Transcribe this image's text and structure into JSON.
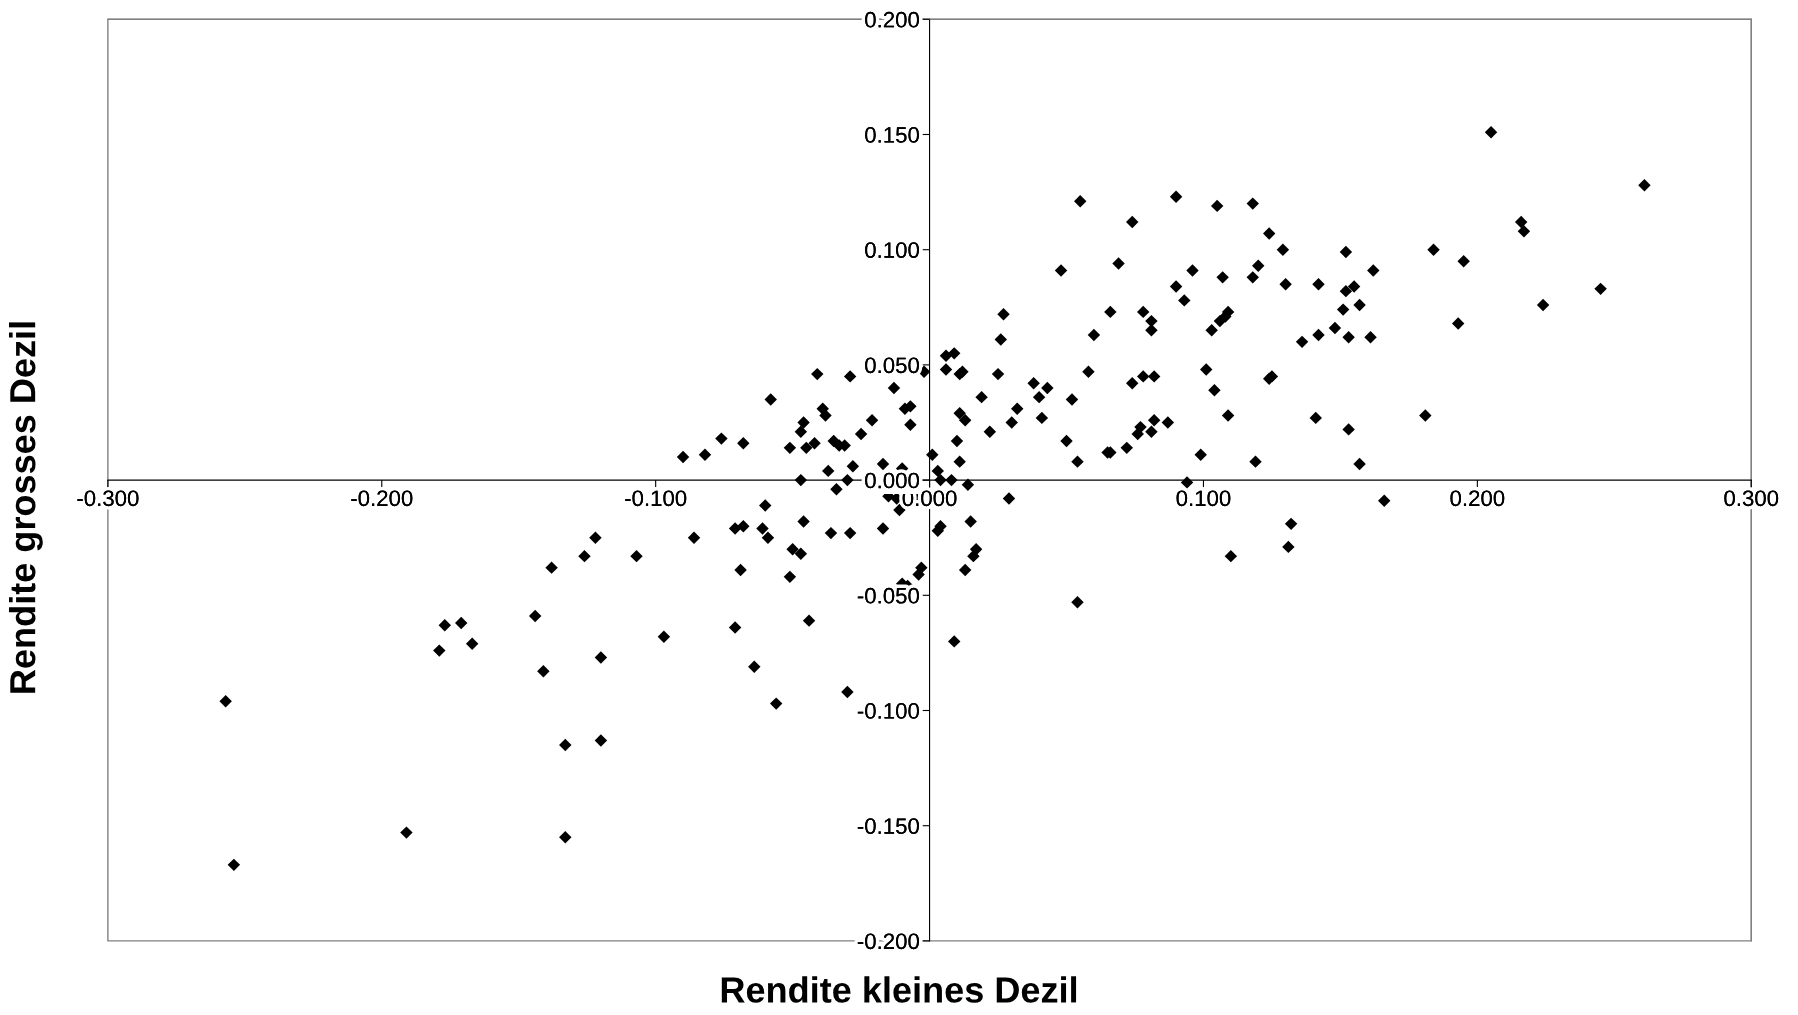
{
  "chart_data": {
    "type": "scatter",
    "xlabel": "Rendite kleines Dezil",
    "ylabel": "Rendite grosses Dezil",
    "xlim": [
      -0.3,
      0.3
    ],
    "ylim": [
      -0.2,
      0.2
    ],
    "xticks": [
      {
        "value": -0.3,
        "label": "-0.300"
      },
      {
        "value": -0.2,
        "label": "-0.200"
      },
      {
        "value": -0.1,
        "label": "-0.100"
      },
      {
        "value": 0.0,
        "label": "0.000"
      },
      {
        "value": 0.1,
        "label": "0.100"
      },
      {
        "value": 0.2,
        "label": "0.200"
      },
      {
        "value": 0.3,
        "label": "0.300"
      }
    ],
    "yticks": [
      {
        "value": -0.2,
        "label": "-0.200"
      },
      {
        "value": -0.15,
        "label": "-0.150"
      },
      {
        "value": -0.1,
        "label": "-0.100"
      },
      {
        "value": -0.05,
        "label": "-0.050"
      },
      {
        "value": 0.0,
        "label": "0.000"
      },
      {
        "value": 0.05,
        "label": "0.050"
      },
      {
        "value": 0.1,
        "label": "0.100"
      },
      {
        "value": 0.15,
        "label": "0.150"
      },
      {
        "value": 0.2,
        "label": "0.200"
      }
    ],
    "marker": "diamond",
    "grid": false,
    "series": [
      {
        "color": "#000000",
        "x": [
          -0.257,
          -0.254,
          -0.191,
          -0.177,
          -0.179,
          -0.171,
          -0.167,
          -0.144,
          -0.141,
          -0.138,
          -0.133,
          -0.133,
          -0.126,
          -0.122,
          -0.12,
          -0.12,
          -0.107,
          -0.097,
          -0.09,
          -0.086,
          -0.082,
          -0.076,
          -0.071,
          -0.069,
          -0.071,
          -0.068,
          -0.068,
          -0.064,
          -0.061,
          -0.06,
          -0.058,
          -0.059,
          -0.056,
          -0.051,
          -0.051,
          -0.05,
          -0.047,
          -0.047,
          -0.046,
          -0.046,
          -0.047,
          -0.045,
          -0.044,
          -0.042,
          -0.041,
          -0.039,
          -0.038,
          -0.037,
          -0.036,
          -0.035,
          -0.034,
          -0.033,
          -0.031,
          -0.03,
          -0.029,
          -0.029,
          -0.03,
          -0.028,
          -0.025,
          -0.021,
          -0.017,
          -0.017,
          -0.015,
          -0.013,
          -0.012,
          -0.011,
          -0.01,
          -0.008,
          -0.009,
          -0.007,
          -0.007,
          -0.01,
          -0.004,
          -0.004,
          -0.003,
          -0.002,
          0.001,
          0.003,
          0.003,
          0.004,
          0.004,
          0.006,
          0.006,
          0.008,
          0.009,
          0.009,
          0.01,
          0.011,
          0.011,
          0.012,
          0.011,
          0.013,
          0.013,
          0.014,
          0.015,
          0.016,
          0.017,
          0.019,
          0.022,
          0.025,
          0.026,
          0.027,
          0.029,
          0.03,
          0.032,
          0.038,
          0.04,
          0.041,
          0.043,
          0.048,
          0.05,
          0.052,
          0.054,
          0.054,
          0.055,
          0.058,
          0.06,
          0.065,
          0.066,
          0.066,
          0.069,
          0.072,
          0.074,
          0.074,
          0.076,
          0.077,
          0.078,
          0.078,
          0.081,
          0.081,
          0.081,
          0.082,
          0.082,
          0.087,
          0.09,
          0.09,
          0.093,
          0.094,
          0.096,
          0.099,
          0.101,
          0.103,
          0.104,
          0.105,
          0.106,
          0.107,
          0.108,
          0.109,
          0.109,
          0.11,
          0.118,
          0.118,
          0.12,
          0.119,
          0.124,
          0.124,
          0.125,
          0.129,
          0.13,
          0.131,
          0.132,
          0.136,
          0.141,
          0.142,
          0.142,
          0.148,
          0.151,
          0.152,
          0.153,
          0.152,
          0.153,
          0.155,
          0.157,
          0.157,
          0.161,
          0.162,
          0.166,
          0.181,
          0.184,
          0.193,
          0.195,
          0.205,
          0.216,
          0.217,
          0.224,
          0.245,
          0.261
        ],
        "values": [
          -0.096,
          -0.167,
          -0.153,
          -0.063,
          -0.074,
          -0.062,
          -0.071,
          -0.059,
          -0.083,
          -0.038,
          -0.115,
          -0.155,
          -0.033,
          -0.025,
          -0.077,
          -0.113,
          -0.033,
          -0.068,
          0.01,
          -0.025,
          0.011,
          0.018,
          -0.021,
          -0.039,
          -0.064,
          -0.02,
          0.016,
          -0.081,
          -0.021,
          -0.011,
          0.035,
          -0.025,
          -0.097,
          0.014,
          -0.042,
          -0.03,
          -0.032,
          0.0,
          0.025,
          -0.018,
          0.021,
          0.014,
          -0.061,
          0.016,
          0.046,
          0.031,
          0.028,
          0.004,
          -0.023,
          0.017,
          -0.004,
          0.015,
          0.015,
          -0.092,
          0.045,
          -0.023,
          0.0,
          0.006,
          0.02,
          0.026,
          -0.021,
          0.007,
          -0.007,
          0.04,
          -0.008,
          -0.013,
          -0.045,
          -0.046,
          0.031,
          0.032,
          0.024,
          0.005,
          -0.007,
          -0.041,
          -0.038,
          0.047,
          0.011,
          0.004,
          -0.022,
          -0.02,
          0.0,
          0.054,
          0.048,
          0.0,
          0.055,
          -0.07,
          0.017,
          0.008,
          0.046,
          0.047,
          0.029,
          -0.039,
          0.026,
          -0.002,
          -0.018,
          -0.033,
          -0.03,
          0.036,
          0.021,
          0.046,
          0.061,
          0.072,
          -0.008,
          0.025,
          0.031,
          0.042,
          0.036,
          0.027,
          0.04,
          0.091,
          0.017,
          0.035,
          -0.053,
          0.008,
          0.121,
          0.047,
          0.063,
          0.012,
          0.073,
          0.012,
          0.094,
          0.014,
          0.042,
          0.112,
          0.02,
          0.023,
          0.073,
          0.045,
          0.021,
          0.069,
          0.065,
          0.045,
          0.026,
          0.025,
          0.123,
          0.084,
          0.078,
          -0.001,
          0.091,
          0.011,
          0.048,
          0.065,
          0.039,
          0.119,
          0.069,
          0.088,
          0.071,
          0.073,
          0.028,
          -0.033,
          0.12,
          0.088,
          0.093,
          0.008,
          0.107,
          0.044,
          0.045,
          0.1,
          0.085,
          -0.029,
          -0.019,
          0.06,
          0.027,
          0.085,
          0.063,
          0.066,
          0.074,
          0.099,
          0.062,
          0.082,
          0.022,
          0.084,
          0.076,
          0.007,
          0.062,
          0.091,
          -0.009,
          0.028,
          0.1,
          0.068,
          0.095,
          0.151,
          0.112,
          0.108,
          0.076,
          0.083,
          0.128
        ]
      }
    ]
  }
}
